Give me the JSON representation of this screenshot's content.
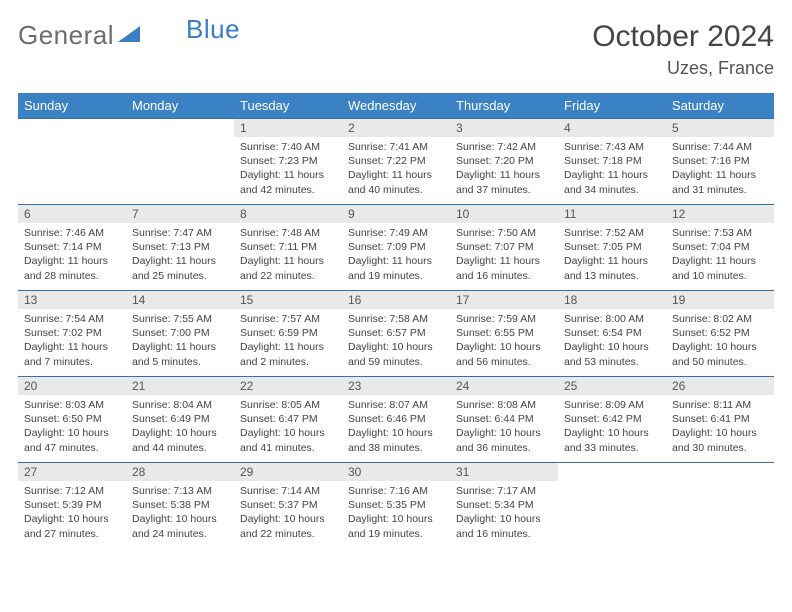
{
  "brand": {
    "name_part1": "General",
    "name_part2": "Blue"
  },
  "title": "October 2024",
  "location": "Uzes, France",
  "colors": {
    "header_bar": "#3b82c4",
    "row_divider": "#3b6ea0",
    "daynum_bg": "#e9e9e9",
    "brand_gray": "#6d6d6d",
    "brand_blue": "#3b7ec4",
    "text": "#444444"
  },
  "days_of_week": [
    "Sunday",
    "Monday",
    "Tuesday",
    "Wednesday",
    "Thursday",
    "Friday",
    "Saturday"
  ],
  "weeks": [
    [
      {
        "empty": true
      },
      {
        "empty": true
      },
      {
        "num": "1",
        "sunrise": "Sunrise: 7:40 AM",
        "sunset": "Sunset: 7:23 PM",
        "day1": "Daylight: 11 hours",
        "day2": "and 42 minutes."
      },
      {
        "num": "2",
        "sunrise": "Sunrise: 7:41 AM",
        "sunset": "Sunset: 7:22 PM",
        "day1": "Daylight: 11 hours",
        "day2": "and 40 minutes."
      },
      {
        "num": "3",
        "sunrise": "Sunrise: 7:42 AM",
        "sunset": "Sunset: 7:20 PM",
        "day1": "Daylight: 11 hours",
        "day2": "and 37 minutes."
      },
      {
        "num": "4",
        "sunrise": "Sunrise: 7:43 AM",
        "sunset": "Sunset: 7:18 PM",
        "day1": "Daylight: 11 hours",
        "day2": "and 34 minutes."
      },
      {
        "num": "5",
        "sunrise": "Sunrise: 7:44 AM",
        "sunset": "Sunset: 7:16 PM",
        "day1": "Daylight: 11 hours",
        "day2": "and 31 minutes."
      }
    ],
    [
      {
        "num": "6",
        "sunrise": "Sunrise: 7:46 AM",
        "sunset": "Sunset: 7:14 PM",
        "day1": "Daylight: 11 hours",
        "day2": "and 28 minutes."
      },
      {
        "num": "7",
        "sunrise": "Sunrise: 7:47 AM",
        "sunset": "Sunset: 7:13 PM",
        "day1": "Daylight: 11 hours",
        "day2": "and 25 minutes."
      },
      {
        "num": "8",
        "sunrise": "Sunrise: 7:48 AM",
        "sunset": "Sunset: 7:11 PM",
        "day1": "Daylight: 11 hours",
        "day2": "and 22 minutes."
      },
      {
        "num": "9",
        "sunrise": "Sunrise: 7:49 AM",
        "sunset": "Sunset: 7:09 PM",
        "day1": "Daylight: 11 hours",
        "day2": "and 19 minutes."
      },
      {
        "num": "10",
        "sunrise": "Sunrise: 7:50 AM",
        "sunset": "Sunset: 7:07 PM",
        "day1": "Daylight: 11 hours",
        "day2": "and 16 minutes."
      },
      {
        "num": "11",
        "sunrise": "Sunrise: 7:52 AM",
        "sunset": "Sunset: 7:05 PM",
        "day1": "Daylight: 11 hours",
        "day2": "and 13 minutes."
      },
      {
        "num": "12",
        "sunrise": "Sunrise: 7:53 AM",
        "sunset": "Sunset: 7:04 PM",
        "day1": "Daylight: 11 hours",
        "day2": "and 10 minutes."
      }
    ],
    [
      {
        "num": "13",
        "sunrise": "Sunrise: 7:54 AM",
        "sunset": "Sunset: 7:02 PM",
        "day1": "Daylight: 11 hours",
        "day2": "and 7 minutes."
      },
      {
        "num": "14",
        "sunrise": "Sunrise: 7:55 AM",
        "sunset": "Sunset: 7:00 PM",
        "day1": "Daylight: 11 hours",
        "day2": "and 5 minutes."
      },
      {
        "num": "15",
        "sunrise": "Sunrise: 7:57 AM",
        "sunset": "Sunset: 6:59 PM",
        "day1": "Daylight: 11 hours",
        "day2": "and 2 minutes."
      },
      {
        "num": "16",
        "sunrise": "Sunrise: 7:58 AM",
        "sunset": "Sunset: 6:57 PM",
        "day1": "Daylight: 10 hours",
        "day2": "and 59 minutes."
      },
      {
        "num": "17",
        "sunrise": "Sunrise: 7:59 AM",
        "sunset": "Sunset: 6:55 PM",
        "day1": "Daylight: 10 hours",
        "day2": "and 56 minutes."
      },
      {
        "num": "18",
        "sunrise": "Sunrise: 8:00 AM",
        "sunset": "Sunset: 6:54 PM",
        "day1": "Daylight: 10 hours",
        "day2": "and 53 minutes."
      },
      {
        "num": "19",
        "sunrise": "Sunrise: 8:02 AM",
        "sunset": "Sunset: 6:52 PM",
        "day1": "Daylight: 10 hours",
        "day2": "and 50 minutes."
      }
    ],
    [
      {
        "num": "20",
        "sunrise": "Sunrise: 8:03 AM",
        "sunset": "Sunset: 6:50 PM",
        "day1": "Daylight: 10 hours",
        "day2": "and 47 minutes."
      },
      {
        "num": "21",
        "sunrise": "Sunrise: 8:04 AM",
        "sunset": "Sunset: 6:49 PM",
        "day1": "Daylight: 10 hours",
        "day2": "and 44 minutes."
      },
      {
        "num": "22",
        "sunrise": "Sunrise: 8:05 AM",
        "sunset": "Sunset: 6:47 PM",
        "day1": "Daylight: 10 hours",
        "day2": "and 41 minutes."
      },
      {
        "num": "23",
        "sunrise": "Sunrise: 8:07 AM",
        "sunset": "Sunset: 6:46 PM",
        "day1": "Daylight: 10 hours",
        "day2": "and 38 minutes."
      },
      {
        "num": "24",
        "sunrise": "Sunrise: 8:08 AM",
        "sunset": "Sunset: 6:44 PM",
        "day1": "Daylight: 10 hours",
        "day2": "and 36 minutes."
      },
      {
        "num": "25",
        "sunrise": "Sunrise: 8:09 AM",
        "sunset": "Sunset: 6:42 PM",
        "day1": "Daylight: 10 hours",
        "day2": "and 33 minutes."
      },
      {
        "num": "26",
        "sunrise": "Sunrise: 8:11 AM",
        "sunset": "Sunset: 6:41 PM",
        "day1": "Daylight: 10 hours",
        "day2": "and 30 minutes."
      }
    ],
    [
      {
        "num": "27",
        "sunrise": "Sunrise: 7:12 AM",
        "sunset": "Sunset: 5:39 PM",
        "day1": "Daylight: 10 hours",
        "day2": "and 27 minutes."
      },
      {
        "num": "28",
        "sunrise": "Sunrise: 7:13 AM",
        "sunset": "Sunset: 5:38 PM",
        "day1": "Daylight: 10 hours",
        "day2": "and 24 minutes."
      },
      {
        "num": "29",
        "sunrise": "Sunrise: 7:14 AM",
        "sunset": "Sunset: 5:37 PM",
        "day1": "Daylight: 10 hours",
        "day2": "and 22 minutes."
      },
      {
        "num": "30",
        "sunrise": "Sunrise: 7:16 AM",
        "sunset": "Sunset: 5:35 PM",
        "day1": "Daylight: 10 hours",
        "day2": "and 19 minutes."
      },
      {
        "num": "31",
        "sunrise": "Sunrise: 7:17 AM",
        "sunset": "Sunset: 5:34 PM",
        "day1": "Daylight: 10 hours",
        "day2": "and 16 minutes."
      },
      {
        "empty": true
      },
      {
        "empty": true
      }
    ]
  ]
}
